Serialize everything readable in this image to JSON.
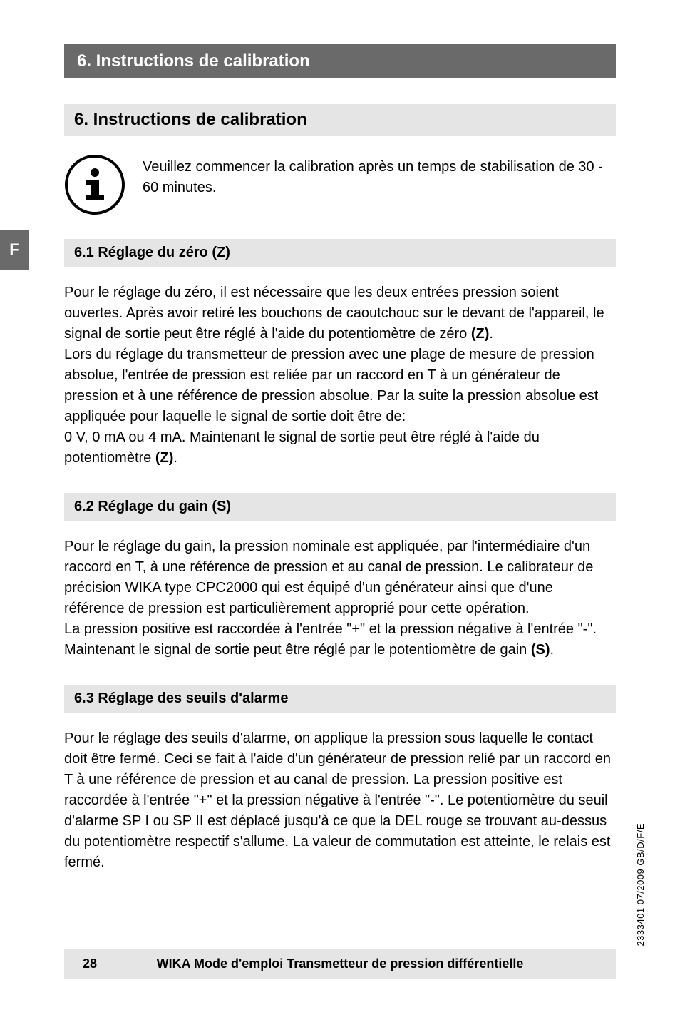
{
  "chapter_bar": "6. Instructions de calibration",
  "language_tab": "F",
  "section_title": "6. Instructions de calibration",
  "info_text": "Veuillez commencer la calibration après un temps de stabilisation de 30 - 60 minutes.",
  "info_icon": {
    "name": "info-icon",
    "stroke_color": "#000000",
    "fill_color": "#000000"
  },
  "subsections": [
    {
      "title": "6.1 Réglage du zéro (Z)",
      "body_html": "Pour le réglage du zéro, il est nécessaire que les deux entrées pression soient ouvertes. Après avoir retiré les bouchons de caoutchouc sur le devant de l'appareil, le signal de sortie peut être réglé à l'aide du potentiomètre de zéro <b>(Z)</b>.<br>Lors du réglage du transmetteur de pression avec une plage de mesure de pression absolue, l'entrée de pression est reliée par un raccord en T à un générateur de pression et à une référence de pression absolue. Par la suite la pression absolue est appliquée pour laquelle le signal de sortie doit être de:<br>0 V, 0 mA ou 4 mA. Maintenant le signal de sortie peut être réglé à l'aide du potentiomètre <b>(Z)</b>."
    },
    {
      "title": "6.2 Réglage du gain (S)",
      "body_html": "Pour le réglage du gain, la pression nominale est appliquée, par l'intermédiaire d'un raccord en T, à une référence de pression et au canal de pression. Le calibrateur de précision WIKA type CPC2000 qui est équipé d'un générateur ainsi que d'une référence de pression est particulièrement approprié pour cette opération.<br>La pression positive est raccordée à l'entrée \"+\" et la pression négative à l'entrée \"-\". Maintenant le signal de sortie peut être réglé par le potentiomètre de gain <b>(S)</b>."
    },
    {
      "title": "6.3 Réglage des seuils d'alarme",
      "body_html": "Pour le réglage des seuils d'alarme, on applique la pression sous laquelle le contact doit être fermé. Ceci se fait à l'aide d'un générateur de pression relié par un raccord en T à une référence de pression et au canal de pression. La pression positive est raccordée à l'entrée \"+\" et la pression négative à l'entrée \"-\". Le potentiomètre du seuil d'alarme SP I ou SP II est déplacé jusqu'à ce que la DEL rouge se trouvant au-dessus du potentiomètre respectif s'allume. La valeur de commutation est atteinte, le relais est fermé."
    }
  ],
  "footer": {
    "page_number": "28",
    "text": "WIKA Mode d'emploi Transmetteur de pression différentielle"
  },
  "side_code": "2333401 07/2009 GB/D/F/E",
  "colors": {
    "chapter_bar_bg": "#6a6a6a",
    "chapter_bar_fg": "#ffffff",
    "section_bg": "#e5e5e5",
    "body_text": "#000000",
    "page_bg": "#ffffff"
  }
}
